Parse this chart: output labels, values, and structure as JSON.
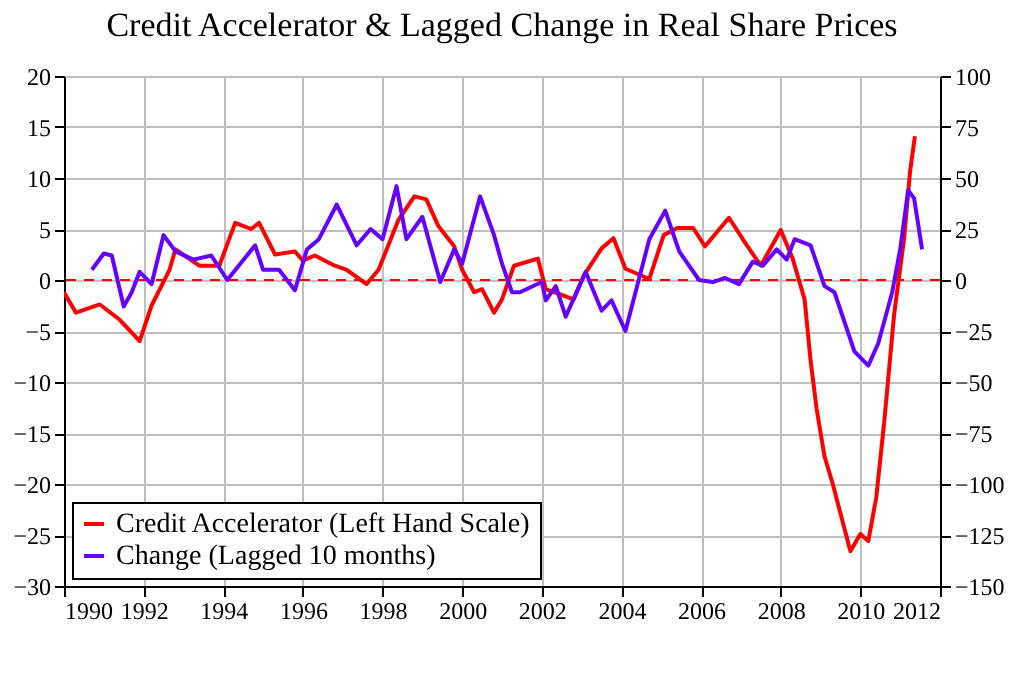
{
  "chart_data": {
    "type": "line",
    "title": "Credit Accelerator & Lagged Change in Real Share Prices",
    "xlim": [
      1990,
      2012
    ],
    "xticks": [
      1990,
      1992,
      1994,
      1996,
      1998,
      2000,
      2002,
      2004,
      2006,
      2008,
      2010,
      2012
    ],
    "ylim": [
      -30,
      20
    ],
    "yticks": [
      -30,
      -25,
      -20,
      -15,
      -10,
      -5,
      0,
      5,
      10,
      15,
      20
    ],
    "y2lim": [
      -150,
      100
    ],
    "y2ticks": [
      -150,
      -125,
      -100,
      -75,
      -50,
      -25,
      0,
      25,
      50,
      75,
      100
    ],
    "grid": true,
    "legend": "bottom left",
    "line_style": "solid",
    "ref_lines": [
      {
        "axis": "y",
        "value": 0,
        "color": "#ff0000",
        "line_style": "dashed"
      }
    ],
    "series": [
      {
        "name": "Credit Accelerator (Left Hand Scale)",
        "color": "#ff0000",
        "axis": "y",
        "x": [
          1990,
          1990.3,
          1990.9,
          1991.4,
          1991.9,
          1992.2,
          1992.65,
          1992.8,
          1993.4,
          1993.9,
          1994.3,
          1994.7,
          1994.9,
          1995.3,
          1995.8,
          1996,
          1996.3,
          1996.8,
          1997.1,
          1997.6,
          1997.9,
          1998.4,
          1998.8,
          1999.1,
          1999.4,
          1999.8,
          2000,
          2000.3,
          2000.5,
          2000.8,
          2001,
          2001.3,
          2001.9,
          2002.1,
          2002.8,
          2003.05,
          2003.5,
          2003.8,
          2004.1,
          2004.7,
          2005.06,
          2005.4,
          2005.8,
          2006.1,
          2006.4,
          2006.7,
          2007.15,
          2007.5,
          2008,
          2008.3,
          2008.6,
          2008.75,
          2008.9,
          2009.1,
          2009.3,
          2009.75,
          2010,
          2010.2,
          2010.4,
          2010.6,
          2010.85,
          2011.1,
          2011.25,
          2011.37
        ],
        "values": [
          -1.2,
          -3.2,
          -2.4,
          -3.9,
          -6,
          -2.5,
          1,
          3,
          1.4,
          1.4,
          5.6,
          5,
          5.6,
          2.5,
          2.8,
          1.9,
          2.4,
          1.4,
          1,
          -0.4,
          1,
          5.9,
          8.2,
          7.9,
          5.3,
          3.3,
          1,
          -1.2,
          -0.9,
          -3.2,
          -1.9,
          1.4,
          2.1,
          -0.9,
          -1.9,
          0.4,
          3.1,
          4.1,
          1.1,
          0.1,
          4.4,
          5.1,
          5.1,
          3.3,
          4.7,
          6.1,
          3.4,
          1.4,
          4.9,
          2.1,
          -1.9,
          -7.9,
          -12.6,
          -17.3,
          -19.9,
          -26.6,
          -24.9,
          -25.6,
          -21.3,
          -13.9,
          -3.3,
          4.1,
          10.7,
          14.1
        ]
      },
      {
        "name": "Change (Lagged 10 months)",
        "color": "#6600ff",
        "axis": "y2",
        "x": [
          1990.7,
          1991,
          1991.2,
          1991.5,
          1991.7,
          1991.9,
          1992.2,
          1992.5,
          1992.8,
          1993.25,
          1993.7,
          1994.1,
          1994.8,
          1995,
          1995.4,
          1995.8,
          1996.1,
          1996.4,
          1996.85,
          1997.35,
          1997.7,
          1998,
          1998.35,
          1998.6,
          1999,
          1999.45,
          1999.8,
          2000,
          2000.45,
          2000.8,
          2001,
          2001.25,
          2001.45,
          2002,
          2002.1,
          2002.35,
          2002.6,
          2003.1,
          2003.5,
          2003.75,
          2004.1,
          2004.7,
          2005.1,
          2005.45,
          2005.95,
          2006.3,
          2006.6,
          2006.95,
          2007.3,
          2007.55,
          2007.9,
          2008.15,
          2008.35,
          2008.75,
          2009.1,
          2009.35,
          2009.85,
          2010.2,
          2010.45,
          2010.8,
          2011,
          2011.2,
          2011.35,
          2011.55
        ],
        "values": [
          5,
          13,
          12,
          -13,
          -6,
          4,
          -2,
          22,
          14,
          10,
          12,
          0,
          17,
          5,
          5,
          -5,
          15,
          20,
          37,
          17,
          25,
          20,
          46,
          20,
          31,
          -1,
          15,
          8,
          41,
          22,
          8,
          -6,
          -6,
          -1,
          -10,
          -3,
          -18,
          4,
          -15,
          -10,
          -25,
          20,
          34,
          14,
          0,
          -1,
          1,
          -2,
          9,
          7,
          15,
          10,
          20,
          17,
          -3,
          -6,
          -35,
          -42,
          -31,
          -6,
          15,
          44,
          40,
          15
        ]
      }
    ]
  }
}
